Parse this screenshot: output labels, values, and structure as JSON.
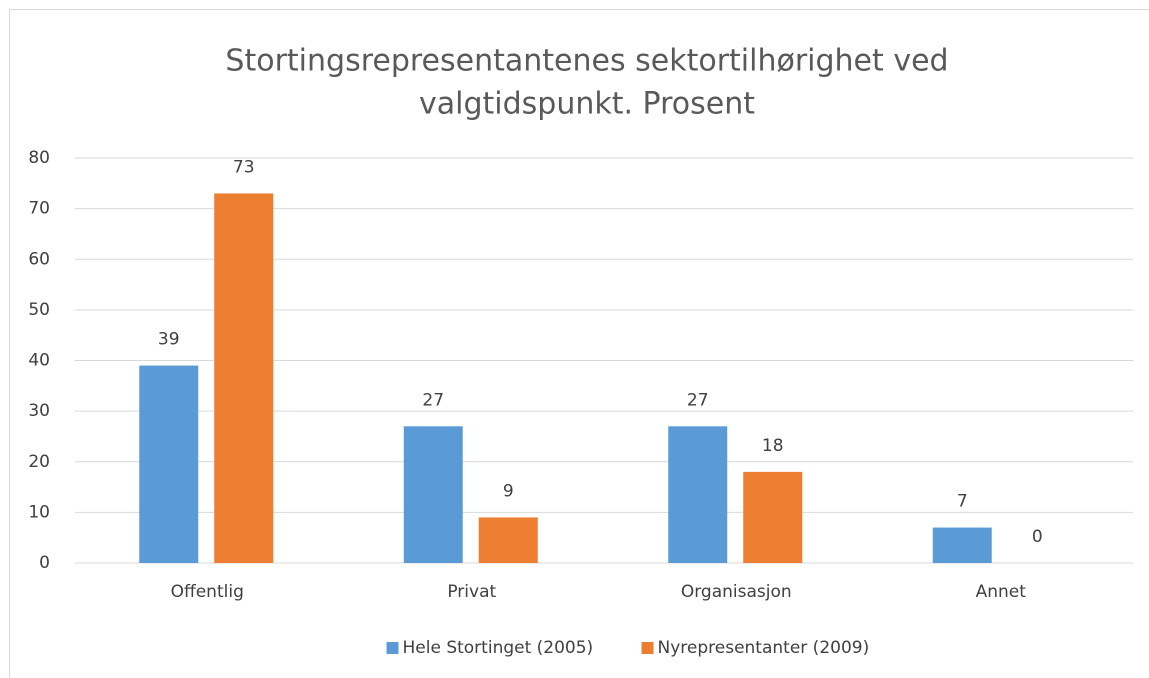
{
  "chart_data": {
    "type": "bar",
    "title": [
      "Stortingsrepresentantenes sektortilhørighet ved",
      "valgtidspunkt. Prosent"
    ],
    "categories": [
      "Offentlig",
      "Privat",
      "Organisasjon",
      "Annet"
    ],
    "series": [
      {
        "name": "Hele Stortinget (2005)",
        "color": "#5b9bd5",
        "values": [
          39,
          27,
          27,
          7
        ]
      },
      {
        "name": "Nyrepresentanter (2009)",
        "color": "#ed7d31",
        "values": [
          73,
          9,
          18,
          0
        ]
      }
    ],
    "ylim": [
      0,
      80
    ],
    "yticks": [
      0,
      10,
      20,
      30,
      40,
      50,
      60,
      70,
      80
    ],
    "grid": true,
    "legend": "bottom"
  }
}
